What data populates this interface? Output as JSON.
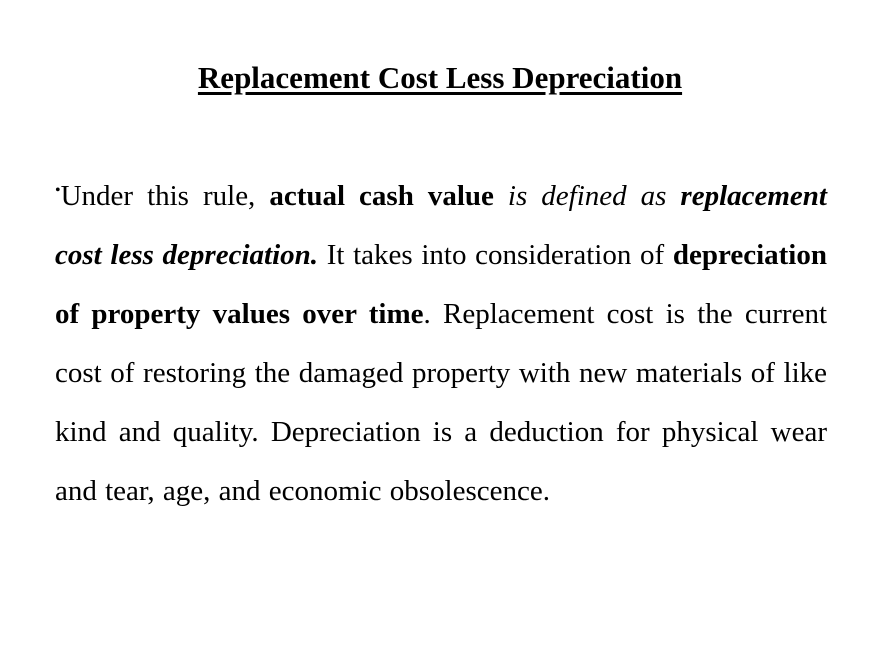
{
  "slide": {
    "title": "Replacement Cost Less Depreciation",
    "bullet_char": "•",
    "paragraph": {
      "runs": [
        {
          "style": "normal",
          "text": "Under this rule, "
        },
        {
          "style": "bold",
          "text": "actual cash value"
        },
        {
          "style": "italic",
          "text": " is defined as "
        },
        {
          "style": "bold-italic",
          "text": "replacement cost less depreciation."
        },
        {
          "style": "normal",
          "text": " It takes into consideration of "
        },
        {
          "style": "bold",
          "text": "depreciation of property values over time"
        },
        {
          "style": "normal",
          "text": ". Replacement cost is the current cost of restoring the damaged property with new materials of like kind and quality. Depreciation is a deduction for physical wear and tear, age, and economic obsolescence."
        }
      ]
    }
  },
  "colors": {
    "background": "#ffffff",
    "text": "#000000"
  }
}
